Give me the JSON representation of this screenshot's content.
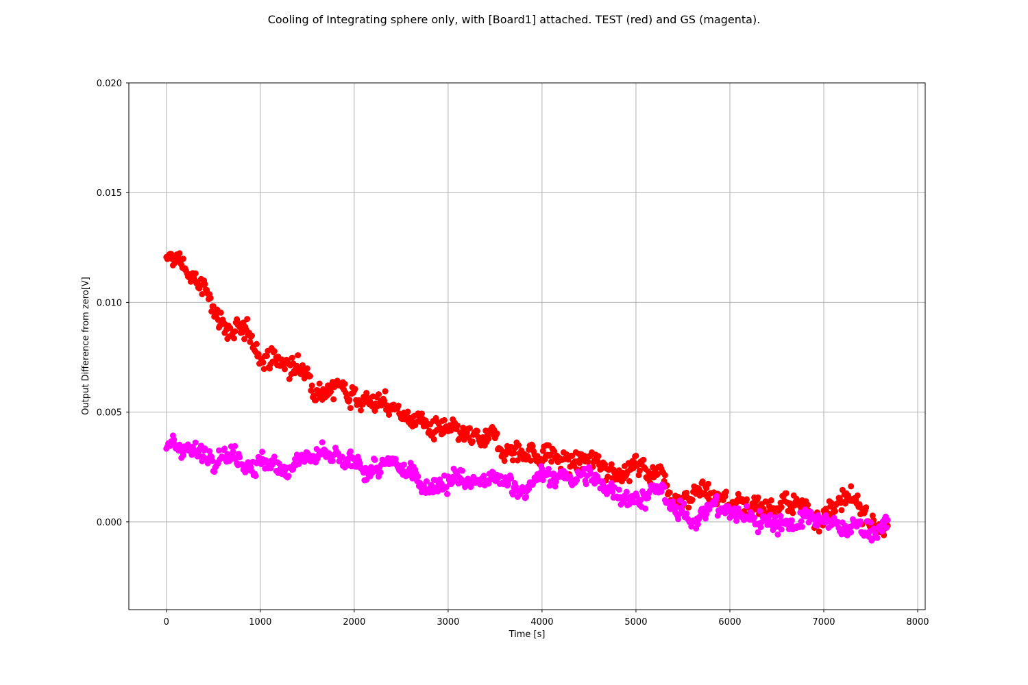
{
  "chart_data": {
    "type": "scatter",
    "title": "Cooling of Integrating sphere only, with [Board1] attached. TEST (red) and GS (magenta).",
    "xlabel": "Time [s]",
    "ylabel": "Output Difference from zero[V]",
    "xlim": [
      -400,
      8080
    ],
    "ylim": [
      -0.004,
      0.02
    ],
    "x_ticks": [
      0,
      1000,
      2000,
      3000,
      4000,
      5000,
      6000,
      7000,
      8000
    ],
    "x_tick_labels": [
      "0",
      "1000",
      "2000",
      "3000",
      "4000",
      "5000",
      "6000",
      "7000",
      "8000"
    ],
    "y_ticks": [
      0.0,
      0.005,
      0.01,
      0.015,
      0.02
    ],
    "y_tick_labels": [
      "0.000",
      "0.005",
      "0.010",
      "0.015",
      "0.020"
    ],
    "grid": true,
    "x_range_data": [
      0,
      7680
    ],
    "sample_spacing": 10,
    "series": [
      {
        "color": "#ff0000",
        "noise": 0.0004,
        "trend_x": [
          0,
          150,
          300,
          500,
          700,
          1000,
          1300,
          1600,
          2000,
          2300,
          2600,
          2800,
          3000,
          3300,
          3600,
          4000,
          4300,
          4600,
          5000,
          5300,
          5400,
          5700,
          6000,
          6300,
          6600,
          7000,
          7300,
          7680
        ],
        "trend_y": [
          0.0118,
          0.0119,
          0.011,
          0.0098,
          0.0087,
          0.0078,
          0.0071,
          0.0065,
          0.006,
          0.0053,
          0.0048,
          0.0043,
          0.0038,
          0.0035,
          0.0035,
          0.0031,
          0.0027,
          0.0026,
          0.0025,
          0.0023,
          0.0013,
          0.0015,
          0.0009,
          0.0009,
          0.0007,
          0.0005,
          0.0006,
          0.0
        ]
      },
      {
        "color": "#ff00ff",
        "noise": 0.00035,
        "trend_x": [
          0,
          200,
          350,
          600,
          800,
          1000,
          1200,
          1400,
          1700,
          2000,
          2300,
          2600,
          2800,
          3000,
          3300,
          3600,
          3800,
          4000,
          4300,
          4600,
          4800,
          5000,
          5300,
          5400,
          5600,
          5700,
          6000,
          6200,
          6500,
          6800,
          7000,
          7300,
          7680
        ],
        "trend_y": [
          0.0031,
          0.0036,
          0.003,
          0.0035,
          0.003,
          0.0028,
          0.0022,
          0.003,
          0.0028,
          0.0024,
          0.0024,
          0.0022,
          0.0018,
          0.002,
          0.0017,
          0.0017,
          0.0017,
          0.0019,
          0.0021,
          0.0018,
          0.0015,
          0.0012,
          0.0012,
          0.0004,
          0.0001,
          0.0008,
          0.0004,
          0.0002,
          0.0001,
          0.0,
          -0.0002,
          -0.0002,
          -0.0003
        ]
      }
    ]
  }
}
